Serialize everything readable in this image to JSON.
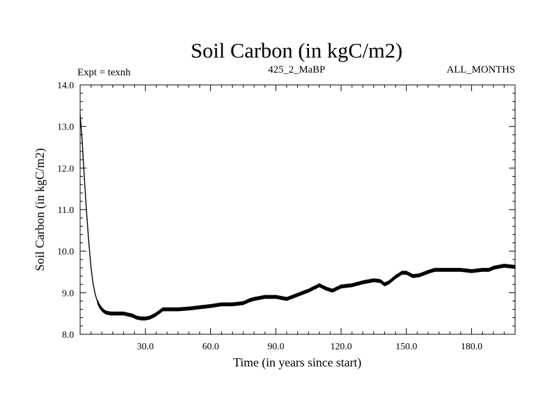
{
  "chart_data": {
    "type": "line",
    "title": "Soil Carbon (in kgC/m2)",
    "experiment_label": "Expt = texnh",
    "run_label": "425_2_MaBP",
    "period_label": "ALL_MONTHS",
    "xlabel": "Time (in years since start)",
    "ylabel": "Soil Carbon (in kgC/m2)",
    "xlim": [
      0,
      200
    ],
    "ylim": [
      8.0,
      14.0
    ],
    "x_ticks": [
      30,
      60,
      90,
      120,
      150,
      180
    ],
    "x_tick_labels": [
      "30.0",
      "60.0",
      "90.0",
      "120.0",
      "150.0",
      "180.0"
    ],
    "y_ticks": [
      8,
      9,
      10,
      11,
      12,
      13,
      14
    ],
    "y_tick_labels": [
      "8.0",
      "9.0",
      "10.0",
      "11.0",
      "12.0",
      "13.0",
      "14.0"
    ],
    "grid": false,
    "series": [
      {
        "name": "Soil Carbon",
        "color": "#000000",
        "x": [
          0,
          1,
          2,
          3,
          4,
          5,
          6,
          7,
          8,
          9,
          10,
          11,
          12,
          14,
          16,
          20,
          24,
          26,
          28,
          30,
          32,
          34,
          36,
          38,
          40,
          45,
          50,
          55,
          60,
          65,
          70,
          75,
          78,
          80,
          85,
          90,
          95,
          100,
          105,
          110,
          113,
          116,
          120,
          125,
          130,
          135,
          138,
          140,
          142,
          145,
          148,
          150,
          153,
          156,
          160,
          163,
          166,
          170,
          175,
          180,
          185,
          188,
          190,
          195,
          200
        ],
        "y": [
          13.3,
          12.6,
          11.7,
          10.9,
          10.2,
          9.6,
          9.2,
          8.95,
          8.78,
          8.67,
          8.6,
          8.55,
          8.52,
          8.5,
          8.5,
          8.5,
          8.45,
          8.4,
          8.38,
          8.38,
          8.4,
          8.45,
          8.52,
          8.6,
          8.6,
          8.6,
          8.62,
          8.65,
          8.68,
          8.72,
          8.72,
          8.75,
          8.82,
          8.85,
          8.9,
          8.9,
          8.85,
          8.95,
          9.05,
          9.18,
          9.1,
          9.05,
          9.15,
          9.18,
          9.25,
          9.3,
          9.28,
          9.2,
          9.25,
          9.38,
          9.48,
          9.48,
          9.4,
          9.42,
          9.5,
          9.55,
          9.55,
          9.55,
          9.55,
          9.52,
          9.55,
          9.55,
          9.6,
          9.65,
          9.62
        ]
      }
    ]
  }
}
